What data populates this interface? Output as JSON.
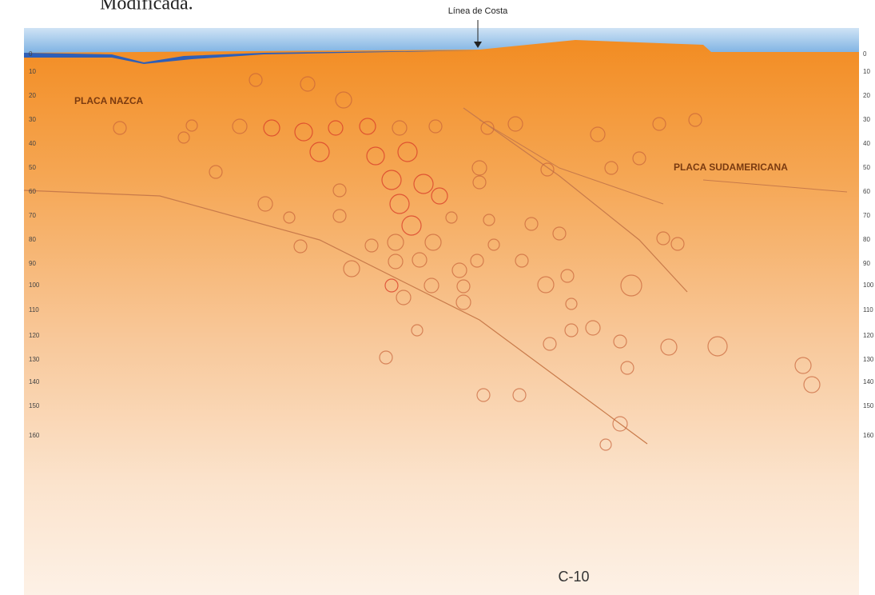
{
  "caption": "Modificada.",
  "coast_label": "Línea de Costa",
  "plate_left": "PLACA NAZCA",
  "plate_right": "PLACA SUDAMERICANA",
  "section_label": "C-10",
  "depth_ticks": [
    "0",
    "10",
    "20",
    "30",
    "40",
    "50",
    "60",
    "70",
    "80",
    "90",
    "100",
    "110",
    "120",
    "130",
    "140",
    "150",
    "160"
  ]
}
